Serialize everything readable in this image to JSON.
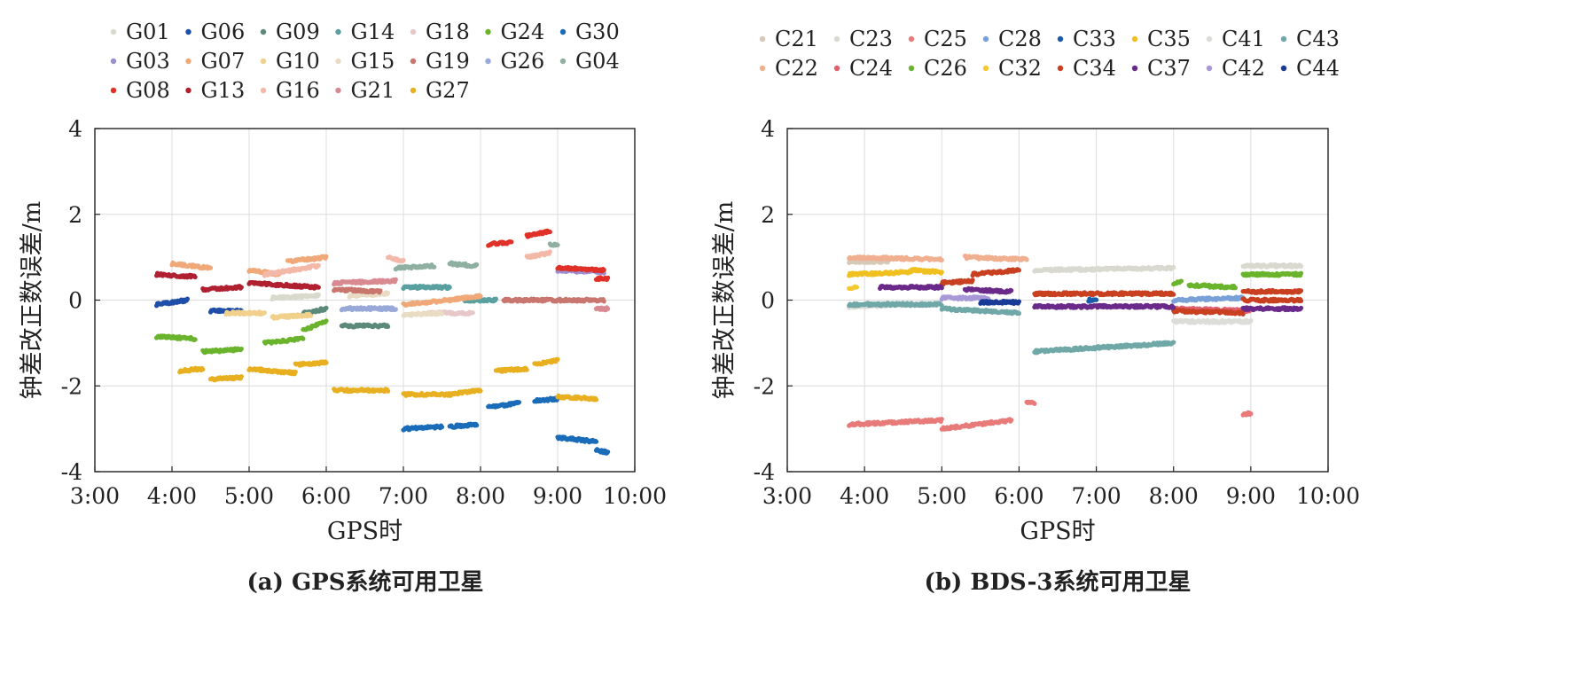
{
  "chart_data": [
    {
      "type": "scatter",
      "caption": "(a) GPS系统可用卫星",
      "xlabel": "GPS时",
      "ylabel": "钟差改正数误差/m",
      "x_ticks": [
        "3:00",
        "4:00",
        "5:00",
        "6:00",
        "7:00",
        "8:00",
        "9:00",
        "10:00"
      ],
      "xlim": [
        3,
        10
      ],
      "y_ticks": [
        "-4",
        "-2",
        "0",
        "2",
        "4"
      ],
      "ylim": [
        -4,
        4
      ],
      "grid": true,
      "legend_position": "top",
      "legend": [
        "G01",
        "G06",
        "G09",
        "G14",
        "G18",
        "G24",
        "G30",
        "G03",
        "G07",
        "G10",
        "G15",
        "G19",
        "G26",
        "G04",
        "G08",
        "G13",
        "G16",
        "G21",
        "G27"
      ],
      "series": [
        {
          "name": "G01",
          "color": "#d9d9cc",
          "segments": [
            [
              5.3,
              5.9,
              0.05,
              0.1
            ]
          ]
        },
        {
          "name": "G06",
          "color": "#1f4fa8",
          "segments": [
            [
              3.8,
              4.2,
              -0.1,
              0.0
            ],
            [
              4.5,
              4.9,
              -0.25,
              -0.25
            ]
          ]
        },
        {
          "name": "G09",
          "color": "#5b8a7b",
          "segments": [
            [
              5.7,
              6.0,
              -0.3,
              -0.2
            ],
            [
              6.2,
              6.8,
              -0.6,
              -0.6
            ]
          ]
        },
        {
          "name": "G14",
          "color": "#5aa0a0",
          "segments": [
            [
              7.0,
              7.6,
              0.3,
              0.3
            ],
            [
              7.8,
              8.2,
              0.0,
              0.0
            ]
          ]
        },
        {
          "name": "G18",
          "color": "#e6c8c8",
          "segments": [
            [
              7.3,
              7.9,
              -0.3,
              -0.3
            ]
          ]
        },
        {
          "name": "G24",
          "color": "#6ab42d",
          "segments": [
            [
              3.8,
              4.3,
              -0.85,
              -0.9
            ],
            [
              4.4,
              4.9,
              -1.2,
              -1.15
            ],
            [
              5.2,
              5.7,
              -1.0,
              -0.9
            ],
            [
              5.7,
              6.0,
              -0.7,
              -0.5
            ]
          ]
        },
        {
          "name": "G30",
          "color": "#1a6cb8",
          "segments": [
            [
              7.0,
              7.5,
              -3.0,
              -2.95
            ],
            [
              7.6,
              7.95,
              -2.95,
              -2.9
            ],
            [
              8.1,
              8.5,
              -2.5,
              -2.4
            ],
            [
              8.7,
              9.0,
              -2.35,
              -2.3
            ],
            [
              9.0,
              9.5,
              -3.2,
              -3.3
            ],
            [
              9.5,
              9.65,
              -3.5,
              -3.55
            ]
          ]
        },
        {
          "name": "G03",
          "color": "#9c8fcf",
          "segments": [
            [
              9.0,
              9.6,
              0.7,
              0.65
            ]
          ]
        },
        {
          "name": "G07",
          "color": "#f0a878",
          "segments": [
            [
              4.0,
              4.5,
              0.85,
              0.75
            ],
            [
              5.0,
              5.4,
              0.7,
              0.6
            ],
            [
              5.5,
              6.0,
              0.9,
              1.0
            ],
            [
              7.0,
              7.6,
              -0.1,
              0.0
            ],
            [
              7.6,
              8.0,
              0.0,
              0.1
            ]
          ]
        },
        {
          "name": "G10",
          "color": "#f0d08a",
          "segments": [
            [
              4.7,
              5.2,
              -0.3,
              -0.3
            ],
            [
              5.3,
              5.8,
              -0.4,
              -0.35
            ]
          ]
        },
        {
          "name": "G15",
          "color": "#e8dcc4",
          "segments": [
            [
              6.3,
              6.8,
              0.1,
              0.15
            ],
            [
              7.0,
              7.5,
              -0.35,
              -0.3
            ]
          ]
        },
        {
          "name": "G19",
          "color": "#c8766e",
          "segments": [
            [
              6.1,
              6.7,
              0.25,
              0.2
            ],
            [
              8.3,
              9.6,
              0.0,
              0.0
            ]
          ]
        },
        {
          "name": "G26",
          "color": "#98a8d8",
          "segments": [
            [
              6.2,
              6.9,
              -0.2,
              -0.2
            ]
          ]
        },
        {
          "name": "G04",
          "color": "#8fb0a0",
          "segments": [
            [
              6.9,
              7.4,
              0.75,
              0.8
            ],
            [
              7.6,
              7.95,
              0.85,
              0.8
            ],
            [
              8.9,
              9.0,
              1.3,
              1.3
            ]
          ]
        },
        {
          "name": "G08",
          "color": "#e03028",
          "segments": [
            [
              8.1,
              8.4,
              1.3,
              1.35
            ],
            [
              8.6,
              8.9,
              1.5,
              1.6
            ],
            [
              9.0,
              9.6,
              0.75,
              0.7
            ],
            [
              9.5,
              9.65,
              0.5,
              0.5
            ]
          ]
        },
        {
          "name": "G13",
          "color": "#b02030",
          "segments": [
            [
              3.8,
              4.3,
              0.6,
              0.55
            ],
            [
              4.4,
              4.9,
              0.25,
              0.3
            ],
            [
              5.0,
              5.9,
              0.4,
              0.3
            ]
          ]
        },
        {
          "name": "G16",
          "color": "#f4b8a8",
          "segments": [
            [
              5.2,
              5.9,
              0.6,
              0.8
            ],
            [
              6.8,
              7.0,
              1.0,
              0.9
            ],
            [
              8.6,
              8.9,
              1.0,
              1.1
            ]
          ]
        },
        {
          "name": "G21",
          "color": "#d88a90",
          "segments": [
            [
              6.1,
              6.9,
              0.4,
              0.45
            ],
            [
              9.5,
              9.65,
              -0.2,
              -0.2
            ]
          ]
        },
        {
          "name": "G27",
          "color": "#e8b020",
          "segments": [
            [
              4.1,
              4.4,
              -1.65,
              -1.6
            ],
            [
              4.5,
              4.9,
              -1.85,
              -1.8
            ],
            [
              5.0,
              5.6,
              -1.6,
              -1.7
            ],
            [
              5.6,
              6.0,
              -1.5,
              -1.45
            ],
            [
              6.1,
              6.8,
              -2.1,
              -2.1
            ],
            [
              7.0,
              7.6,
              -2.2,
              -2.2
            ],
            [
              7.6,
              8.0,
              -2.2,
              -2.1
            ],
            [
              8.2,
              8.6,
              -1.65,
              -1.6
            ],
            [
              8.7,
              9.0,
              -1.5,
              -1.4
            ],
            [
              9.0,
              9.5,
              -2.25,
              -2.3
            ]
          ]
        }
      ]
    },
    {
      "type": "scatter",
      "caption": "(b) BDS-3系统可用卫星",
      "xlabel": "GPS时",
      "ylabel": "钟差改正数误差/m",
      "x_ticks": [
        "3:00",
        "4:00",
        "5:00",
        "6:00",
        "7:00",
        "8:00",
        "9:00",
        "10:00"
      ],
      "xlim": [
        3,
        10
      ],
      "y_ticks": [
        "-4",
        "-2",
        "0",
        "2",
        "4"
      ],
      "ylim": [
        -4,
        4
      ],
      "grid": true,
      "legend_position": "top",
      "legend": [
        "C21",
        "C23",
        "C25",
        "C28",
        "C33",
        "C35",
        "C41",
        "C43",
        "C22",
        "C24",
        "C26",
        "C32",
        "C34",
        "C37",
        "C42",
        "C44"
      ],
      "series": [
        {
          "name": "C21",
          "color": "#d8c8b8",
          "segments": [
            [
              3.8,
              4.3,
              0.9,
              0.9
            ]
          ]
        },
        {
          "name": "C23",
          "color": "#d9d9d0",
          "segments": [
            [
              6.2,
              8.0,
              0.7,
              0.75
            ],
            [
              8.9,
              9.65,
              0.8,
              0.8
            ]
          ]
        },
        {
          "name": "C25",
          "color": "#e87a7a",
          "segments": [
            [
              3.8,
              5.0,
              -2.9,
              -2.8
            ],
            [
              5.0,
              5.9,
              -3.0,
              -2.8
            ],
            [
              6.1,
              6.2,
              -2.4,
              -2.4
            ],
            [
              8.9,
              9.0,
              -2.65,
              -2.65
            ]
          ]
        },
        {
          "name": "C28",
          "color": "#7aa0d8",
          "segments": [
            [
              8.0,
              8.9,
              0.0,
              0.05
            ]
          ]
        },
        {
          "name": "C33",
          "color": "#1a5ca8",
          "segments": [
            [
              6.9,
              7.0,
              0.0,
              0.0
            ]
          ]
        },
        {
          "name": "C35",
          "color": "#f0c020",
          "segments": [
            [
              3.8,
              4.6,
              0.6,
              0.65
            ],
            [
              4.6,
              5.0,
              0.7,
              0.65
            ]
          ]
        },
        {
          "name": "C41",
          "color": "#dcdcd8",
          "segments": [
            [
              3.8,
              4.6,
              -0.15,
              -0.1
            ],
            [
              8.0,
              9.0,
              -0.5,
              -0.5
            ]
          ]
        },
        {
          "name": "C43",
          "color": "#70a8a8",
          "segments": [
            [
              3.8,
              5.0,
              -0.1,
              -0.1
            ],
            [
              5.0,
              6.0,
              -0.2,
              -0.3
            ],
            [
              6.2,
              8.0,
              -1.2,
              -1.0
            ]
          ]
        },
        {
          "name": "C22",
          "color": "#f0b090",
          "segments": [
            [
              3.8,
              5.0,
              1.0,
              0.95
            ],
            [
              5.3,
              6.1,
              1.0,
              0.95
            ]
          ]
        },
        {
          "name": "C24",
          "color": "#e06070",
          "segments": [
            [
              8.0,
              9.0,
              -0.2,
              -0.25
            ]
          ]
        },
        {
          "name": "C26",
          "color": "#6ab42d",
          "segments": [
            [
              8.0,
              8.1,
              0.4,
              0.45
            ],
            [
              8.2,
              8.8,
              0.35,
              0.3
            ],
            [
              8.9,
              9.65,
              0.6,
              0.6
            ]
          ]
        },
        {
          "name": "C32",
          "color": "#f4c830",
          "segments": [
            [
              3.8,
              3.9,
              0.3,
              0.3
            ]
          ]
        },
        {
          "name": "C34",
          "color": "#c84020",
          "segments": [
            [
              5.0,
              5.4,
              0.4,
              0.45
            ],
            [
              5.4,
              6.0,
              0.6,
              0.7
            ],
            [
              6.2,
              8.0,
              0.15,
              0.15
            ],
            [
              8.9,
              9.65,
              0.2,
              0.2
            ],
            [
              8.0,
              8.9,
              -0.25,
              -0.3
            ],
            [
              8.9,
              9.65,
              0.0,
              0.0
            ]
          ]
        },
        {
          "name": "C37",
          "color": "#6a2a8a",
          "segments": [
            [
              4.2,
              5.0,
              0.3,
              0.3
            ],
            [
              5.3,
              5.9,
              0.25,
              0.2
            ],
            [
              6.2,
              8.0,
              -0.15,
              -0.15
            ],
            [
              8.9,
              9.65,
              -0.2,
              -0.2
            ]
          ]
        },
        {
          "name": "C42",
          "color": "#a898d8",
          "segments": [
            [
              5.0,
              5.6,
              0.05,
              0.05
            ]
          ]
        },
        {
          "name": "C44",
          "color": "#1a3a98",
          "segments": [
            [
              5.5,
              6.0,
              -0.05,
              -0.05
            ]
          ]
        }
      ]
    }
  ]
}
